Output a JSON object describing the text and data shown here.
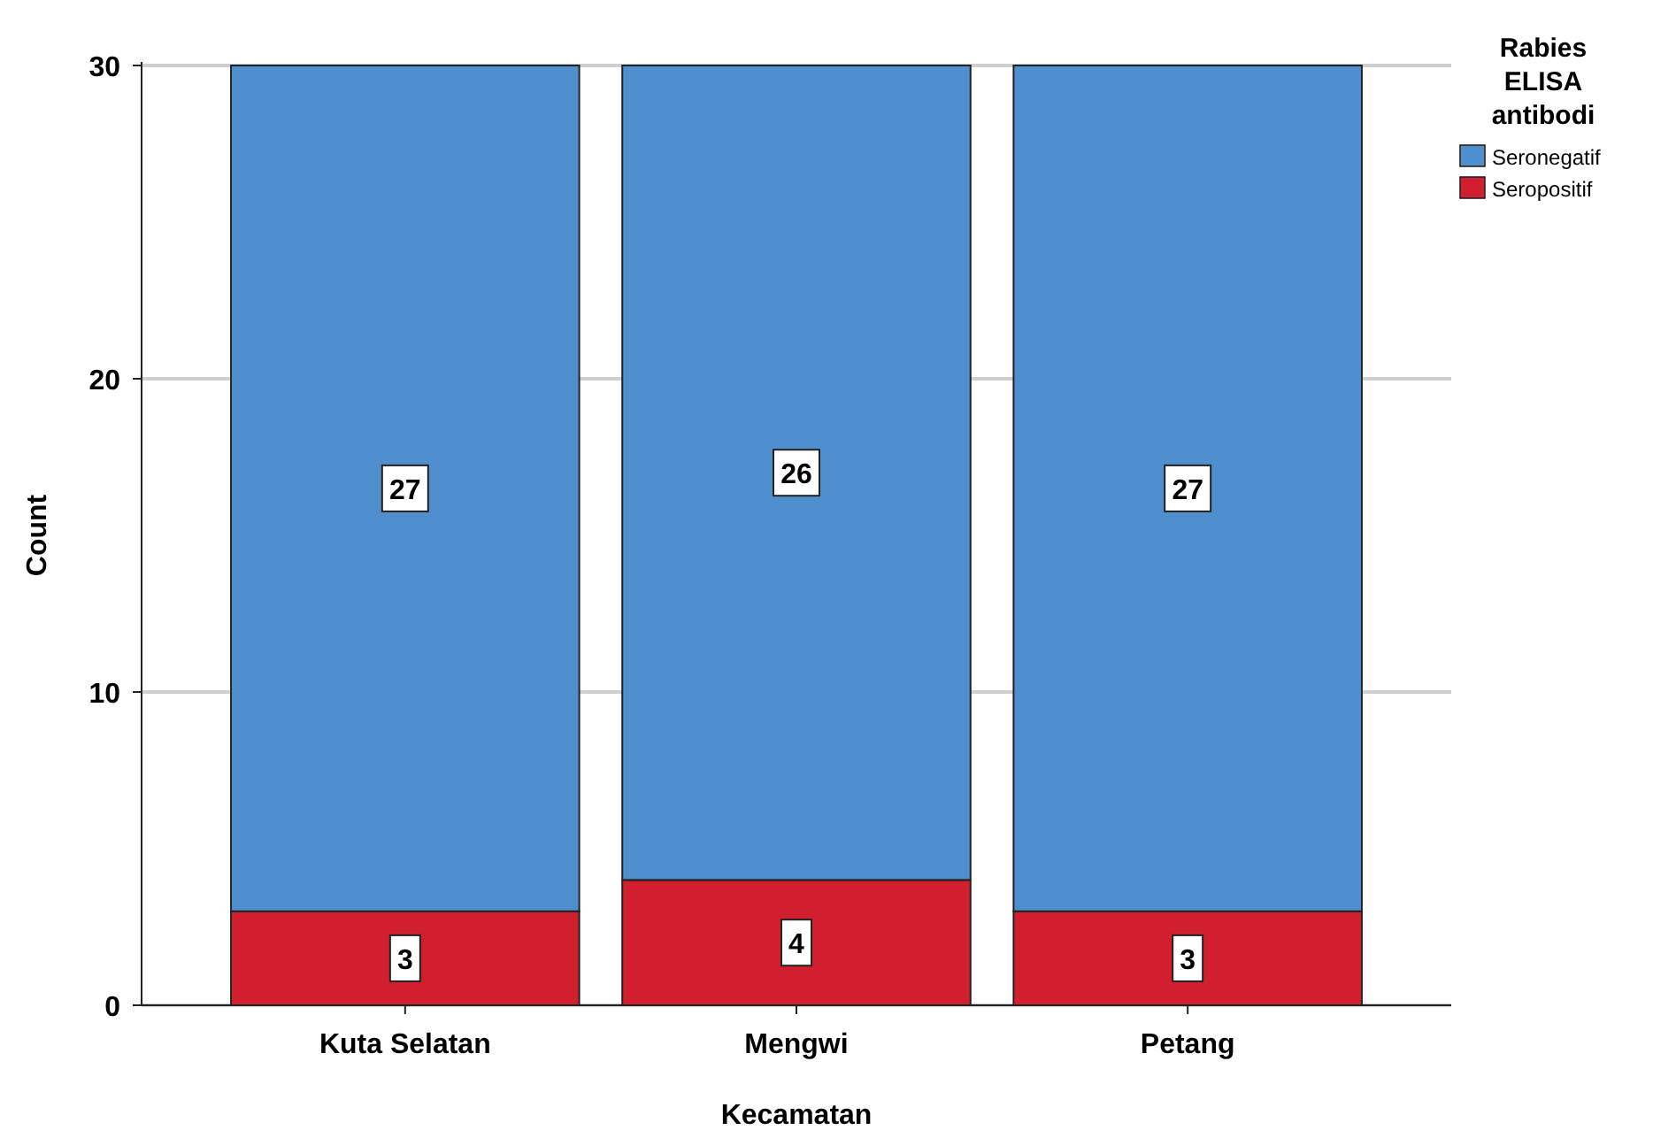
{
  "chart_data": {
    "type": "bar",
    "stacked": true,
    "xlabel": "Kecamatan",
    "ylabel": "Count",
    "legend_title": "Rabies ELISA antibodi",
    "legend": "top right",
    "grid": "y",
    "data_labels": true,
    "categories": [
      "Kuta Selatan",
      "Mengwi",
      "Petang"
    ],
    "series": [
      {
        "name": "Seropositif",
        "color": "#d21f2f",
        "values": [
          3,
          4,
          3
        ]
      },
      {
        "name": "Seronegatif",
        "color": "#4f8fce",
        "values": [
          27,
          26,
          27
        ]
      }
    ],
    "ylim": [
      0,
      30
    ],
    "yticks": [
      0,
      10,
      20,
      30
    ]
  }
}
